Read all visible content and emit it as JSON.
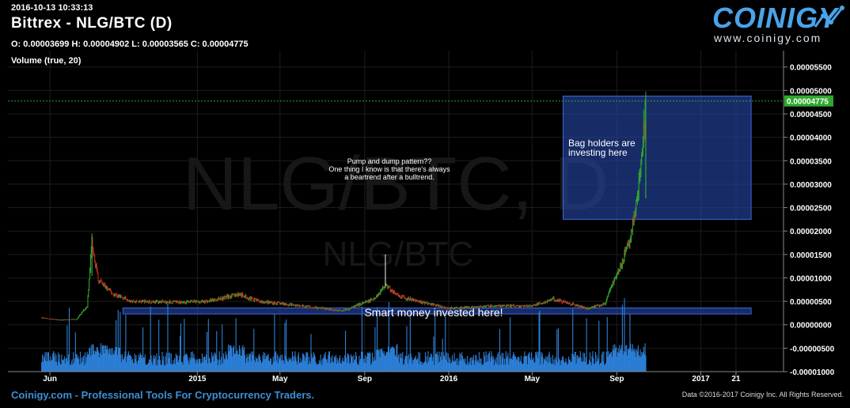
{
  "header": {
    "timestamp": "2016-10-13 10:33:13",
    "title": "Bittrex - NLG/BTC (D)",
    "ohlc": "O: 0.00003699 H: 0.00004902 L: 0.00003565 C: 0.00004775",
    "volume_label": "Volume (true, 20)"
  },
  "logo": {
    "word": "COINIGY",
    "url": "www.coinigy.com"
  },
  "footer": {
    "tagline": "Coinigy.com - Professional Tools For Cryptocurrency Traders.",
    "copyright": "Data ©2016-2017 Coinigy Inc. All Rights Reserved."
  },
  "watermark": {
    "big": "NLG/BTC, D",
    "small": "NLG/BTC"
  },
  "colors": {
    "up": "#2ea82e",
    "down": "#d22020",
    "volume": "#2c7fd6",
    "last_price": "#2ea82e",
    "box": "#24449e"
  },
  "chart_data": {
    "type": "candlestick",
    "ylim": [
      -1e-05,
      5.85e-05
    ],
    "y_ticks": [
      "0.00005500",
      "0.00005000",
      "0.00004500",
      "0.00004000",
      "0.00003500",
      "0.00003000",
      "0.00002500",
      "0.00002000",
      "0.00001500",
      "0.00001000",
      "0.00000500",
      "0.00000000",
      "-0.00000500",
      "-0.00001000"
    ],
    "y_tick_values": [
      5.5e-05,
      5e-05,
      4.5e-05,
      4e-05,
      3.5e-05,
      3e-05,
      2.5e-05,
      2e-05,
      1.5e-05,
      1e-05,
      5e-06,
      0,
      -5e-06,
      -1e-05
    ],
    "x_ticks": [
      "Jun",
      "2015",
      "May",
      "Sep",
      "2016",
      "May",
      "Sep",
      "2017",
      "21"
    ],
    "x_tick_dates": [
      "2014-06-01",
      "2015-01-01",
      "2015-05-01",
      "2015-09-01",
      "2016-01-01",
      "2016-05-01",
      "2016-09-01",
      "2017-01-01",
      "2017-02-21"
    ],
    "x_range": [
      "2014-04-01",
      "2017-05-01"
    ],
    "last_price": {
      "label": "0.00004775",
      "value": 4.775e-05
    },
    "price_path": [
      [
        "2014-05-20",
        1.5e-06
      ],
      [
        "2014-06-15",
        1e-06
      ],
      [
        "2014-07-10",
        1.2e-06
      ],
      [
        "2014-07-25",
        4e-06
      ],
      [
        "2014-08-01",
        1.8e-05
      ],
      [
        "2014-08-10",
        9.5e-06
      ],
      [
        "2014-09-01",
        6.5e-06
      ],
      [
        "2014-10-01",
        5e-06
      ],
      [
        "2014-12-01",
        4.8e-06
      ],
      [
        "2015-01-15",
        5e-06
      ],
      [
        "2015-03-01",
        6.5e-06
      ],
      [
        "2015-04-01",
        5e-06
      ],
      [
        "2015-06-01",
        4e-06
      ],
      [
        "2015-08-01",
        3e-06
      ],
      [
        "2015-09-15",
        5.5e-06
      ],
      [
        "2015-10-01",
        8.5e-06
      ],
      [
        "2015-10-20",
        6e-06
      ],
      [
        "2016-01-01",
        3.5e-06
      ],
      [
        "2016-03-01",
        4e-06
      ],
      [
        "2016-05-01",
        4e-06
      ],
      [
        "2016-06-01",
        5.5e-06
      ],
      [
        "2016-07-20",
        3.5e-06
      ],
      [
        "2016-08-15",
        4.5e-06
      ],
      [
        "2016-08-25",
        8.5e-06
      ],
      [
        "2016-09-05",
        1.2e-05
      ],
      [
        "2016-09-20",
        1.8e-05
      ],
      [
        "2016-10-01",
        2.7e-05
      ],
      [
        "2016-10-08",
        3.7e-05
      ],
      [
        "2016-10-13",
        4.775e-05
      ]
    ],
    "spikes": [
      [
        "2014-08-01",
        1.9e-05
      ],
      [
        "2015-10-01",
        1.5e-05
      ],
      [
        "2016-10-13",
        4.902e-05
      ]
    ],
    "annotations": [
      {
        "text": [
          "Pump and dump pattern??",
          "One thing I know is that there's always",
          "a beartrend after a bulltrend."
        ]
      },
      {
        "text": [
          "Bag holders are",
          "investing here"
        ]
      },
      {
        "text": [
          "Smart money invested here!"
        ]
      }
    ],
    "regions": [
      {
        "x0": "2016-06-15",
        "x1": "2017-03-15",
        "y0": 2.25e-05,
        "y1": 4.88e-05
      },
      {
        "x0": "2014-09-15",
        "x1": "2017-03-15",
        "y0": 2.3e-06,
        "y1": 3.6e-06
      }
    ]
  }
}
